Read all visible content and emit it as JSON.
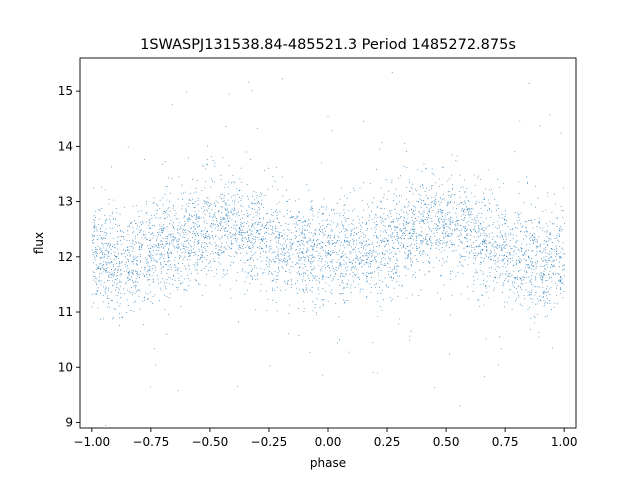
{
  "chart_data": {
    "type": "scatter",
    "title": "1SWASPJ131538.84-485521.3 Period 1485272.875s",
    "xlabel": "phase",
    "ylabel": "flux",
    "xlim": [
      -1.05,
      1.05
    ],
    "ylim": [
      8.9,
      15.6
    ],
    "xticks": [
      -1.0,
      -0.75,
      -0.5,
      -0.25,
      0.0,
      0.25,
      0.5,
      0.75,
      1.0
    ],
    "xtick_labels": [
      "−1.00",
      "−0.75",
      "−0.50",
      "−0.25",
      "0.00",
      "0.25",
      "0.50",
      "0.75",
      "1.00"
    ],
    "yticks": [
      9,
      10,
      11,
      12,
      13,
      14,
      15
    ],
    "ytick_labels": [
      "9",
      "10",
      "11",
      "12",
      "13",
      "14",
      "15"
    ],
    "grid": false,
    "legend": false,
    "marker_color": "#1f77b4",
    "series": [
      {
        "description_note": "Dense phase-folded light curve; points mirrored across phase 0 (same profile repeated for phase < 0 and phase > 0).",
        "x_range": [
          -1.0,
          1.0
        ],
        "y_mean_profile": [
          {
            "phase": 0.0,
            "flux": 12.0
          },
          {
            "phase": 0.1,
            "flux": 12.1
          },
          {
            "phase": 0.2,
            "flux": 12.15
          },
          {
            "phase": 0.3,
            "flux": 12.4
          },
          {
            "phase": 0.4,
            "flux": 12.6
          },
          {
            "phase": 0.5,
            "flux": 12.55
          },
          {
            "phase": 0.6,
            "flux": 12.35
          },
          {
            "phase": 0.7,
            "flux": 12.2
          },
          {
            "phase": 0.8,
            "flux": 12.0
          },
          {
            "phase": 0.9,
            "flux": 11.9
          },
          {
            "phase": 1.0,
            "flux": 12.0
          }
        ],
        "typical_spread": 0.45,
        "outlier_range": [
          9.2,
          15.4
        ]
      }
    ]
  }
}
